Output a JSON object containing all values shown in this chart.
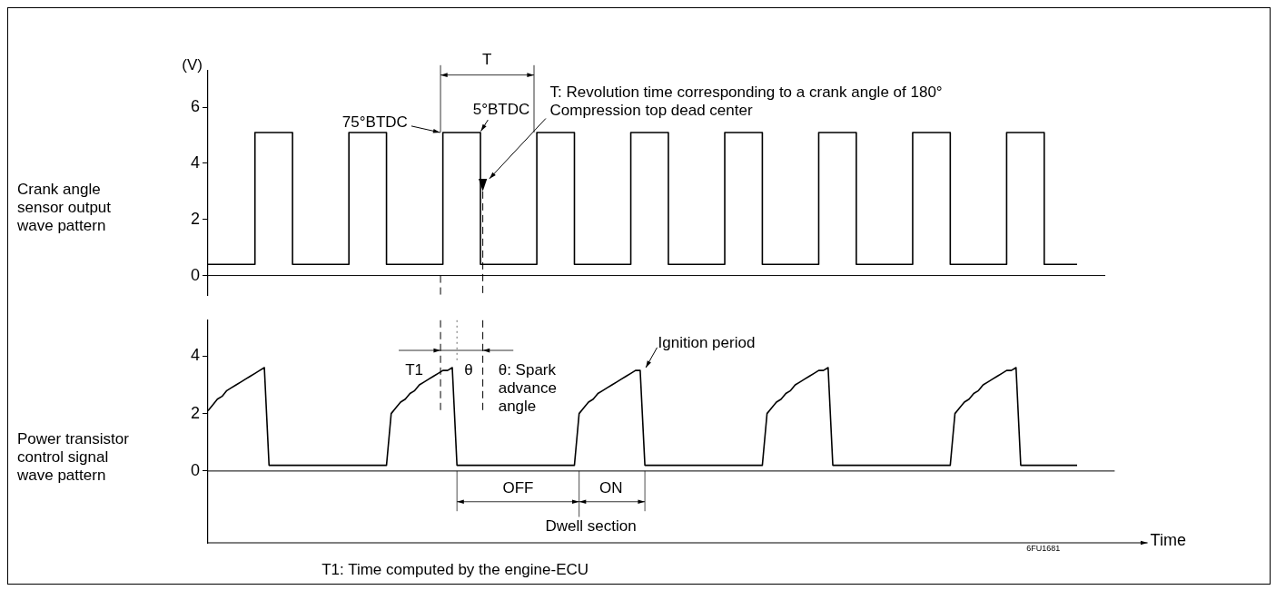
{
  "chart_data": [
    {
      "type": "step",
      "title": "Crank angle sensor output wave pattern",
      "ylabel": "(V)",
      "tick_labels": "y",
      "categories": [
        null,
        null,
        null,
        null,
        null,
        null,
        null,
        null,
        null,
        null,
        null,
        null,
        null,
        null,
        null,
        null,
        null,
        null,
        null,
        null,
        null,
        null,
        null,
        null,
        null,
        null,
        null,
        null,
        null,
        null,
        null,
        null,
        null,
        null,
        null,
        null,
        null,
        null,
        null,
        null,
        null,
        null,
        null,
        null,
        null,
        null,
        null,
        null,
        null,
        null,
        null,
        null,
        null,
        null,
        null,
        null,
        null,
        null,
        null,
        null,
        null,
        null,
        null,
        null,
        null,
        null,
        null,
        null,
        null,
        null,
        null,
        null,
        null,
        null,
        null,
        null,
        null,
        null,
        null,
        null,
        null,
        null,
        null,
        null,
        null,
        null,
        null,
        null,
        null,
        null,
        null,
        null,
        null,
        null,
        null,
        null,
        null,
        null,
        null,
        null,
        null,
        null,
        null,
        null,
        null,
        null,
        null,
        null,
        null,
        null,
        null,
        null,
        null,
        null,
        null,
        null,
        null,
        null,
        null,
        null,
        null,
        null,
        null,
        null,
        null,
        null,
        null,
        null,
        null,
        null,
        null,
        null,
        null,
        null,
        null,
        null,
        null,
        null,
        null,
        null,
        null,
        null,
        null,
        null,
        null,
        null,
        null,
        null,
        null,
        null,
        null,
        null,
        null,
        null,
        null,
        null,
        null,
        null,
        null,
        null,
        null,
        null,
        null,
        null,
        null,
        null,
        null,
        null,
        null,
        null,
        null,
        null,
        null,
        null,
        null,
        null,
        null,
        null,
        null,
        null,
        null,
        null,
        null,
        null,
        null,
        null
      ],
      "series": [
        {
          "color": "#000000",
          "values": [
            0.4,
            0.4,
            0.4,
            0.4,
            0.4,
            0.4,
            0.4,
            0.4,
            0.4,
            0.4,
            5.1,
            5.1,
            5.1,
            5.1,
            5.1,
            5.1,
            5.1,
            5.1,
            0.4,
            0.4,
            0.4,
            0.4,
            0.4,
            0.4,
            0.4,
            0.4,
            0.4,
            0.4,
            0.4,
            0.4,
            5.1,
            5.1,
            5.1,
            5.1,
            5.1,
            5.1,
            5.1,
            5.1,
            0.4,
            0.4,
            0.4,
            0.4,
            0.4,
            0.4,
            0.4,
            0.4,
            0.4,
            0.4,
            0.4,
            0.4,
            5.1,
            5.1,
            5.1,
            5.1,
            5.1,
            5.1,
            5.1,
            5.1,
            0.4,
            0.4,
            0.4,
            0.4,
            0.4,
            0.4,
            0.4,
            0.4,
            0.4,
            0.4,
            0.4,
            0.4,
            5.1,
            5.1,
            5.1,
            5.1,
            5.1,
            5.1,
            5.1,
            5.1,
            0.4,
            0.4,
            0.4,
            0.4,
            0.4,
            0.4,
            0.4,
            0.4,
            0.4,
            0.4,
            0.4,
            0.4,
            5.1,
            5.1,
            5.1,
            5.1,
            5.1,
            5.1,
            5.1,
            5.1,
            0.4,
            0.4,
            0.4,
            0.4,
            0.4,
            0.4,
            0.4,
            0.4,
            0.4,
            0.4,
            0.4,
            0.4,
            5.1,
            5.1,
            5.1,
            5.1,
            5.1,
            5.1,
            5.1,
            5.1,
            0.4,
            0.4,
            0.4,
            0.4,
            0.4,
            0.4,
            0.4,
            0.4,
            0.4,
            0.4,
            0.4,
            0.4,
            5.1,
            5.1,
            5.1,
            5.1,
            5.1,
            5.1,
            5.1,
            5.1,
            0.4,
            0.4,
            0.4,
            0.4,
            0.4,
            0.4,
            0.4,
            0.4,
            0.4,
            0.4,
            0.4,
            0.4,
            5.1,
            5.1,
            5.1,
            5.1,
            5.1,
            5.1,
            5.1,
            5.1,
            0.4,
            0.4,
            0.4,
            0.4,
            0.4,
            0.4,
            0.4,
            0.4,
            0.4,
            0.4,
            0.4,
            0.4,
            5.1,
            5.1,
            5.1,
            5.1,
            5.1,
            5.1,
            5.1,
            5.1,
            0.4,
            0.4,
            0.4,
            0.4,
            0.4,
            0.4,
            0.4,
            0.4
          ]
        }
      ],
      "ylim": [
        -0.7,
        7.3
      ],
      "yticks": [
        0,
        2,
        4,
        6
      ],
      "annotations": [
        "T",
        "75°BTDC",
        "5°BTDC",
        "T: Revolution time corresponding to a crank angle of 180°",
        "Compression top dead center"
      ]
    },
    {
      "type": "line",
      "title": "Power transistor control signal wave pattern",
      "xlabel": "Time",
      "tick_labels": "y",
      "categories": [
        null,
        null,
        null,
        null,
        null,
        null,
        null,
        null,
        null,
        null,
        null,
        null,
        null,
        null,
        null,
        null,
        null,
        null,
        null,
        null,
        null,
        null,
        null,
        null,
        null,
        null,
        null,
        null,
        null,
        null,
        null,
        null,
        null,
        null,
        null,
        null,
        null,
        null,
        null,
        null,
        null,
        null,
        null,
        null,
        null,
        null,
        null,
        null,
        null,
        null,
        null,
        null,
        null,
        null,
        null,
        null,
        null,
        null,
        null,
        null,
        null,
        null,
        null,
        null,
        null,
        null,
        null,
        null,
        null,
        null,
        null,
        null,
        null,
        null,
        null,
        null,
        null,
        null,
        null,
        null,
        null,
        null,
        null,
        null,
        null,
        null,
        null,
        null,
        null,
        null,
        null,
        null,
        null,
        null,
        null,
        null,
        null,
        null,
        null,
        null,
        null,
        null,
        null,
        null,
        null,
        null,
        null,
        null,
        null,
        null,
        null,
        null,
        null,
        null,
        null,
        null,
        null,
        null,
        null,
        null,
        null,
        null,
        null,
        null,
        null,
        null,
        null,
        null,
        null,
        null,
        null,
        null,
        null,
        null,
        null,
        null,
        null,
        null,
        null,
        null,
        null,
        null,
        null,
        null,
        null,
        null,
        null,
        null,
        null,
        null,
        null,
        null,
        null,
        null,
        null,
        null,
        null,
        null,
        null,
        null,
        null,
        null,
        null,
        null,
        null,
        null,
        null,
        null,
        null,
        null,
        null,
        null,
        null,
        null,
        null,
        null,
        null,
        null,
        null,
        null,
        null,
        null,
        null,
        null,
        null,
        null
      ],
      "series": [
        {
          "color": "#000000",
          "values": [
            2.1,
            2.3,
            2.5,
            2.6,
            2.8,
            2.9,
            3.0,
            3.1,
            3.2,
            3.3,
            3.4,
            3.5,
            3.6,
            0.2,
            0.2,
            0.2,
            0.2,
            0.2,
            0.2,
            0.2,
            0.2,
            0.2,
            0.2,
            0.2,
            0.2,
            0.2,
            0.2,
            0.2,
            0.2,
            0.2,
            0.2,
            0.2,
            0.2,
            0.2,
            0.2,
            0.2,
            0.2,
            0.2,
            0.2,
            2.0,
            2.2,
            2.4,
            2.5,
            2.7,
            2.8,
            3.0,
            3.1,
            3.2,
            3.3,
            3.4,
            3.5,
            3.5,
            3.6,
            0.2,
            0.2,
            0.2,
            0.2,
            0.2,
            0.2,
            0.2,
            0.2,
            0.2,
            0.2,
            0.2,
            0.2,
            0.2,
            0.2,
            0.2,
            0.2,
            0.2,
            0.2,
            0.2,
            0.2,
            0.2,
            0.2,
            0.2,
            0.2,
            0.2,
            0.2,
            2.0,
            2.2,
            2.4,
            2.5,
            2.7,
            2.8,
            2.9,
            3.0,
            3.1,
            3.2,
            3.3,
            3.4,
            3.5,
            3.5,
            0.2,
            0.2,
            0.2,
            0.2,
            0.2,
            0.2,
            0.2,
            0.2,
            0.2,
            0.2,
            0.2,
            0.2,
            0.2,
            0.2,
            0.2,
            0.2,
            0.2,
            0.2,
            0.2,
            0.2,
            0.2,
            0.2,
            0.2,
            0.2,
            0.2,
            0.2,
            2.0,
            2.2,
            2.4,
            2.5,
            2.7,
            2.8,
            3.0,
            3.1,
            3.2,
            3.3,
            3.4,
            3.5,
            3.5,
            3.6,
            0.2,
            0.2,
            0.2,
            0.2,
            0.2,
            0.2,
            0.2,
            0.2,
            0.2,
            0.2,
            0.2,
            0.2,
            0.2,
            0.2,
            0.2,
            0.2,
            0.2,
            0.2,
            0.2,
            0.2,
            0.2,
            0.2,
            0.2,
            0.2,
            0.2,
            0.2,
            2.0,
            2.2,
            2.4,
            2.5,
            2.7,
            2.8,
            3.0,
            3.1,
            3.2,
            3.3,
            3.4,
            3.5,
            3.5,
            3.6,
            0.2,
            0.2,
            0.2,
            0.2,
            0.2,
            0.2,
            0.2,
            0.2,
            0.2,
            0.2,
            0.2,
            0.2,
            0.2
          ]
        }
      ],
      "ylim": [
        -2.5,
        5.25
      ],
      "yticks": [
        0,
        2,
        4
      ],
      "annotations": [
        "T1",
        "θ",
        "θ: Spark advance angle",
        "Ignition period",
        "OFF",
        "ON",
        "Dwell section",
        "T1: Time computed by the engine-ECU",
        "6FU1681"
      ]
    }
  ]
}
